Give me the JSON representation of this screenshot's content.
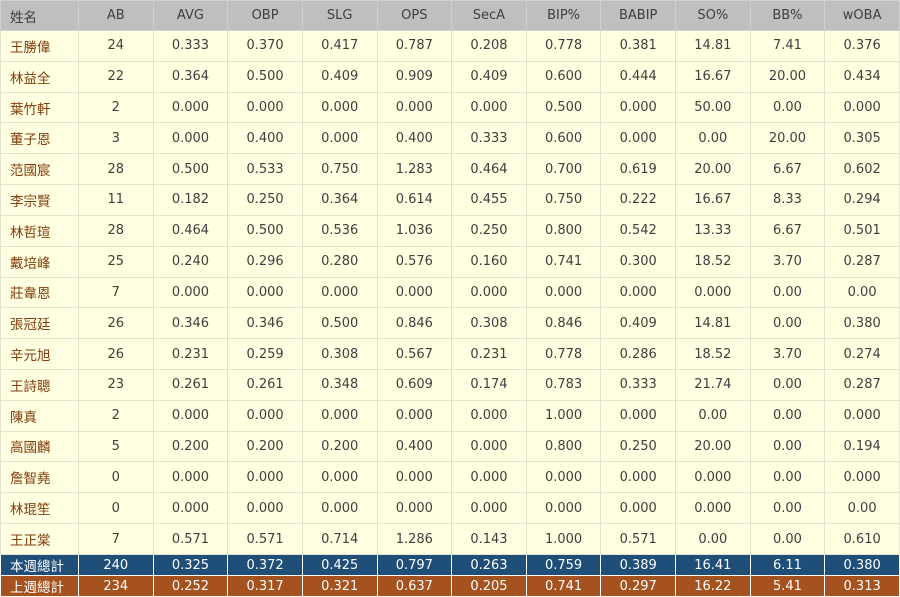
{
  "chart_data": {
    "type": "table",
    "columns": [
      "姓名",
      "AB",
      "AVG",
      "OBP",
      "SLG",
      "OPS",
      "SecA",
      "BIP%",
      "BABIP",
      "SO%",
      "BB%",
      "wOBA"
    ],
    "rows": [
      [
        "王勝偉",
        "24",
        "0.333",
        "0.370",
        "0.417",
        "0.787",
        "0.208",
        "0.778",
        "0.381",
        "14.81",
        "7.41",
        "0.376"
      ],
      [
        "林益全",
        "22",
        "0.364",
        "0.500",
        "0.409",
        "0.909",
        "0.409",
        "0.600",
        "0.444",
        "16.67",
        "20.00",
        "0.434"
      ],
      [
        "葉竹軒",
        "2",
        "0.000",
        "0.000",
        "0.000",
        "0.000",
        "0.000",
        "0.500",
        "0.000",
        "50.00",
        "0.00",
        "0.000"
      ],
      [
        "董子恩",
        "3",
        "0.000",
        "0.400",
        "0.000",
        "0.400",
        "0.333",
        "0.600",
        "0.000",
        "0.00",
        "20.00",
        "0.305"
      ],
      [
        "范國宸",
        "28",
        "0.500",
        "0.533",
        "0.750",
        "1.283",
        "0.464",
        "0.700",
        "0.619",
        "20.00",
        "6.67",
        "0.602"
      ],
      [
        "李宗賢",
        "11",
        "0.182",
        "0.250",
        "0.364",
        "0.614",
        "0.455",
        "0.750",
        "0.222",
        "16.67",
        "8.33",
        "0.294"
      ],
      [
        "林哲瑄",
        "28",
        "0.464",
        "0.500",
        "0.536",
        "1.036",
        "0.250",
        "0.800",
        "0.542",
        "13.33",
        "6.67",
        "0.501"
      ],
      [
        "戴培峰",
        "25",
        "0.240",
        "0.296",
        "0.280",
        "0.576",
        "0.160",
        "0.741",
        "0.300",
        "18.52",
        "3.70",
        "0.287"
      ],
      [
        "莊韋恩",
        "7",
        "0.000",
        "0.000",
        "0.000",
        "0.000",
        "0.000",
        "0.000",
        "0.000",
        "0.000",
        "0.00",
        "0.00"
      ],
      [
        "張冠廷",
        "26",
        "0.346",
        "0.346",
        "0.500",
        "0.846",
        "0.308",
        "0.846",
        "0.409",
        "14.81",
        "0.00",
        "0.380"
      ],
      [
        "辛元旭",
        "26",
        "0.231",
        "0.259",
        "0.308",
        "0.567",
        "0.231",
        "0.778",
        "0.286",
        "18.52",
        "3.70",
        "0.274"
      ],
      [
        "王詩聰",
        "23",
        "0.261",
        "0.261",
        "0.348",
        "0.609",
        "0.174",
        "0.783",
        "0.333",
        "21.74",
        "0.00",
        "0.287"
      ],
      [
        "陳真",
        "2",
        "0.000",
        "0.000",
        "0.000",
        "0.000",
        "0.000",
        "1.000",
        "0.000",
        "0.00",
        "0.00",
        "0.000"
      ],
      [
        "高國麟",
        "5",
        "0.200",
        "0.200",
        "0.200",
        "0.400",
        "0.000",
        "0.800",
        "0.250",
        "20.00",
        "0.00",
        "0.194"
      ],
      [
        "詹智堯",
        "0",
        "0.000",
        "0.000",
        "0.000",
        "0.000",
        "0.000",
        "0.000",
        "0.000",
        "0.000",
        "0.00",
        "0.000"
      ],
      [
        "林琨笙",
        "0",
        "0.000",
        "0.000",
        "0.000",
        "0.000",
        "0.000",
        "0.000",
        "0.000",
        "0.000",
        "0.00",
        "0.00"
      ],
      [
        "王正棠",
        "7",
        "0.571",
        "0.571",
        "0.714",
        "1.286",
        "0.143",
        "1.000",
        "0.571",
        "0.00",
        "0.00",
        "0.610"
      ]
    ],
    "total_rows": [
      {
        "label": "本週總計",
        "values": [
          "240",
          "0.325",
          "0.372",
          "0.425",
          "0.797",
          "0.263",
          "0.759",
          "0.389",
          "16.41",
          "6.11",
          "0.380"
        ]
      },
      {
        "label": "上週總計",
        "values": [
          "234",
          "0.252",
          "0.317",
          "0.321",
          "0.637",
          "0.205",
          "0.741",
          "0.297",
          "16.22",
          "5.41",
          "0.313"
        ]
      }
    ]
  },
  "colors": {
    "header_bg": "#BFBFBF",
    "header_text": "#3F3F3F",
    "row_bg": "#FFFFE1",
    "name_text": "#843C0C",
    "number_text": "#3F3F3F",
    "this_week_total_bg": "#1F4E79",
    "last_week_total_bg": "#A6521E",
    "total_text": "#FFFFFF"
  }
}
